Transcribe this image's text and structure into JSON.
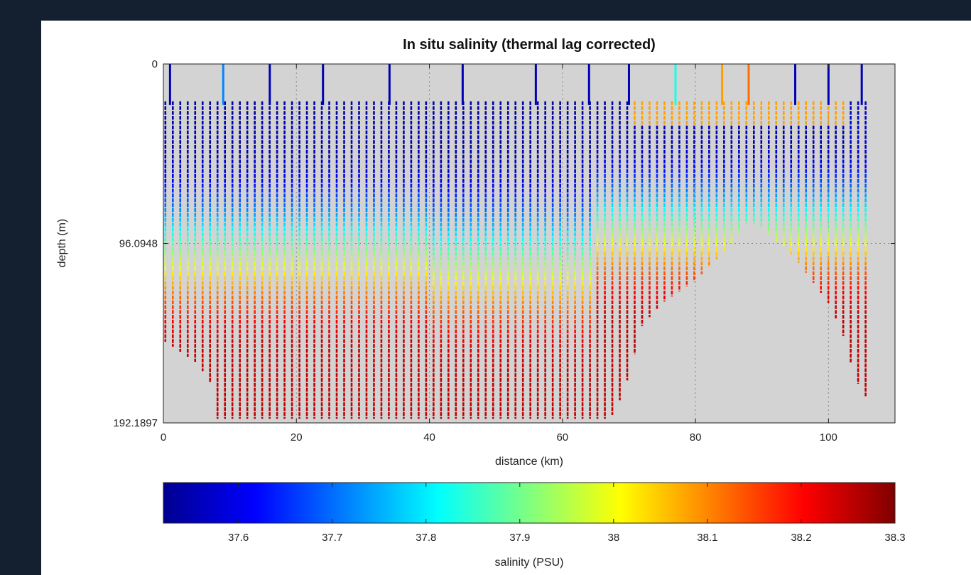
{
  "chart_data": [
    {
      "type": "scatter",
      "subtype": "glider-section-profile",
      "title": "In situ salinity (thermal lag corrected)",
      "xlabel": "distance (km)",
      "ylabel": "depth (m)",
      "xlim": [
        0,
        110
      ],
      "ylim": [
        192.1897,
        0
      ],
      "y_inverted": true,
      "xticks": [
        0,
        20,
        40,
        60,
        80,
        100
      ],
      "xtick_labels": [
        "0",
        "20",
        "40",
        "60",
        "80",
        "100"
      ],
      "yticks": [
        0,
        96.0948,
        192.1897
      ],
      "ytick_labels": [
        "0",
        "96.0948",
        "192.1897"
      ],
      "grid": true,
      "grid_style": "dotted",
      "background": "#d3d3d3",
      "color_scale": "jet",
      "clim": [
        37.52,
        38.3
      ],
      "profile_stride_km": 1.12,
      "profile_range_km": [
        0,
        106
      ],
      "surface_depth_m": 20,
      "profiles": {
        "distance_km": [
          0,
          5,
          7,
          8,
          10,
          20,
          30,
          40,
          50,
          60,
          63,
          66,
          67,
          68,
          70,
          72,
          75,
          80,
          85,
          88,
          90,
          95,
          100,
          102,
          104,
          105,
          106
        ],
        "max_depth_m": [
          148,
          160,
          170,
          190,
          190,
          190,
          190,
          190,
          190,
          190,
          190,
          190,
          190,
          186,
          167,
          140,
          128,
          116,
          98,
          84,
          88,
          104,
          128,
          143,
          168,
          175,
          180
        ]
      },
      "salinity_structure": {
        "fresh_surface_layer_psu": 37.55,
        "fresh_layer_depth_m": [
          20,
          40
        ],
        "halocline_depth_m": [
          40,
          85
        ],
        "deep_salinity_psu": 38.25,
        "saline_surface_lens": {
          "distance_km": [
            70,
            104
          ],
          "depth_m": [
            15,
            32
          ],
          "salinity_psu": 38.08
        }
      },
      "full_depth_dives_km": [
        1,
        9,
        16,
        24,
        34,
        45,
        56,
        64,
        70,
        77,
        84,
        88,
        95,
        100,
        105
      ],
      "full_dive_color_psu": [
        37.56,
        37.72,
        37.56,
        37.56,
        37.56,
        37.56,
        37.56,
        37.56,
        37.56,
        37.83,
        38.08,
        38.12,
        37.56,
        37.56,
        37.56
      ]
    },
    {
      "type": "colorbar",
      "label": "salinity (PSU)",
      "range": [
        37.52,
        38.3
      ],
      "ticks": [
        37.6,
        37.7,
        37.8,
        37.9,
        38.0,
        38.1,
        38.2,
        38.3
      ],
      "tick_labels": [
        "37.6",
        "37.7",
        "37.8",
        "37.9",
        "38",
        "38.1",
        "38.2",
        "38.3"
      ],
      "colormap": "jet"
    }
  ]
}
